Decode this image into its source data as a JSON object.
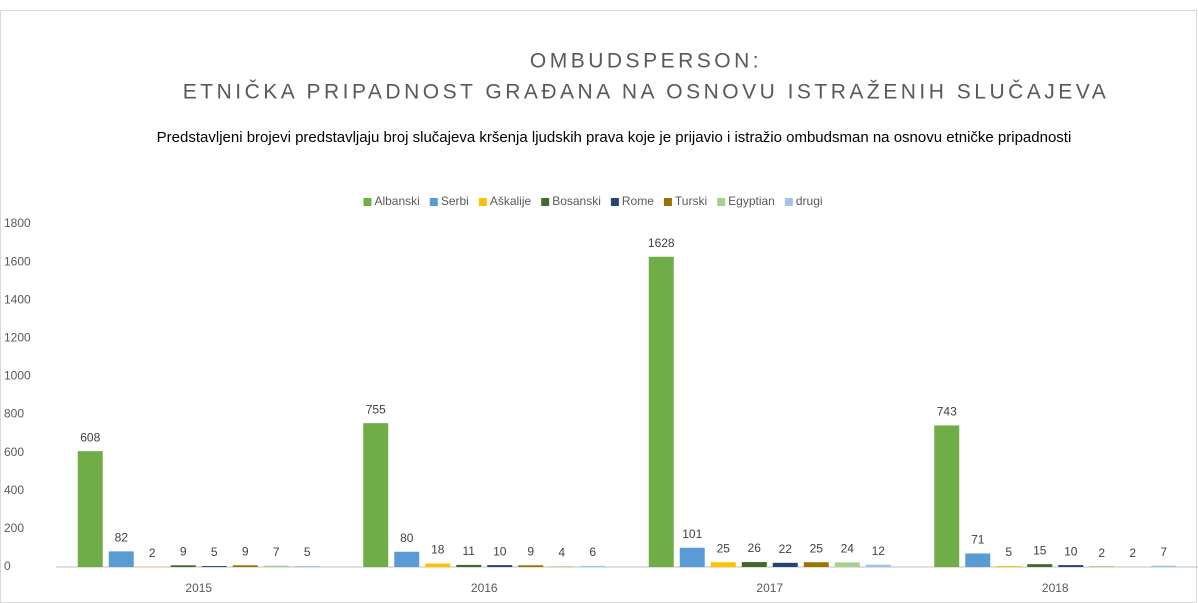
{
  "chart_data": {
    "type": "bar",
    "title": [
      "OMBUDSPERSON:",
      "ETNIČKA PRIPADNOST GRAĐANA NA OSNOVU ISTRAŽENIH SLUČAJEVA"
    ],
    "subtitle": "Predstavljeni  brojevi predstavljaju broj slučajeva kršenja ljudskih prava koje je prijavio i istražio ombudsman  na osnovu etničke pripadnosti",
    "categories": [
      "2015",
      "2016",
      "2017",
      "2018"
    ],
    "series": [
      {
        "name": "Albanski",
        "color": "#70ad47",
        "values": [
          608,
          755,
          1628,
          743
        ]
      },
      {
        "name": "Serbi",
        "color": "#5b9bd5",
        "values": [
          82,
          80,
          101,
          71
        ]
      },
      {
        "name": "Aškalije",
        "color": "#ffc000",
        "values": [
          2,
          18,
          25,
          5
        ]
      },
      {
        "name": "Bosanski",
        "color": "#43682b",
        "values": [
          9,
          11,
          26,
          15
        ]
      },
      {
        "name": "Rome",
        "color": "#264478",
        "values": [
          5,
          10,
          22,
          10
        ]
      },
      {
        "name": "Turski",
        "color": "#997300",
        "values": [
          9,
          9,
          25,
          2
        ]
      },
      {
        "name": "Egyptian",
        "color": "#a9d18e",
        "values": [
          7,
          4,
          24,
          2
        ]
      },
      {
        "name": "drugi",
        "color": "#9dc3e6",
        "values": [
          5,
          6,
          12,
          7
        ]
      }
    ],
    "ylim": [
      0,
      1800
    ],
    "yticks": [
      0,
      200,
      400,
      600,
      800,
      1000,
      1200,
      1400,
      1600,
      1800
    ],
    "legend": "top",
    "grid": false
  }
}
